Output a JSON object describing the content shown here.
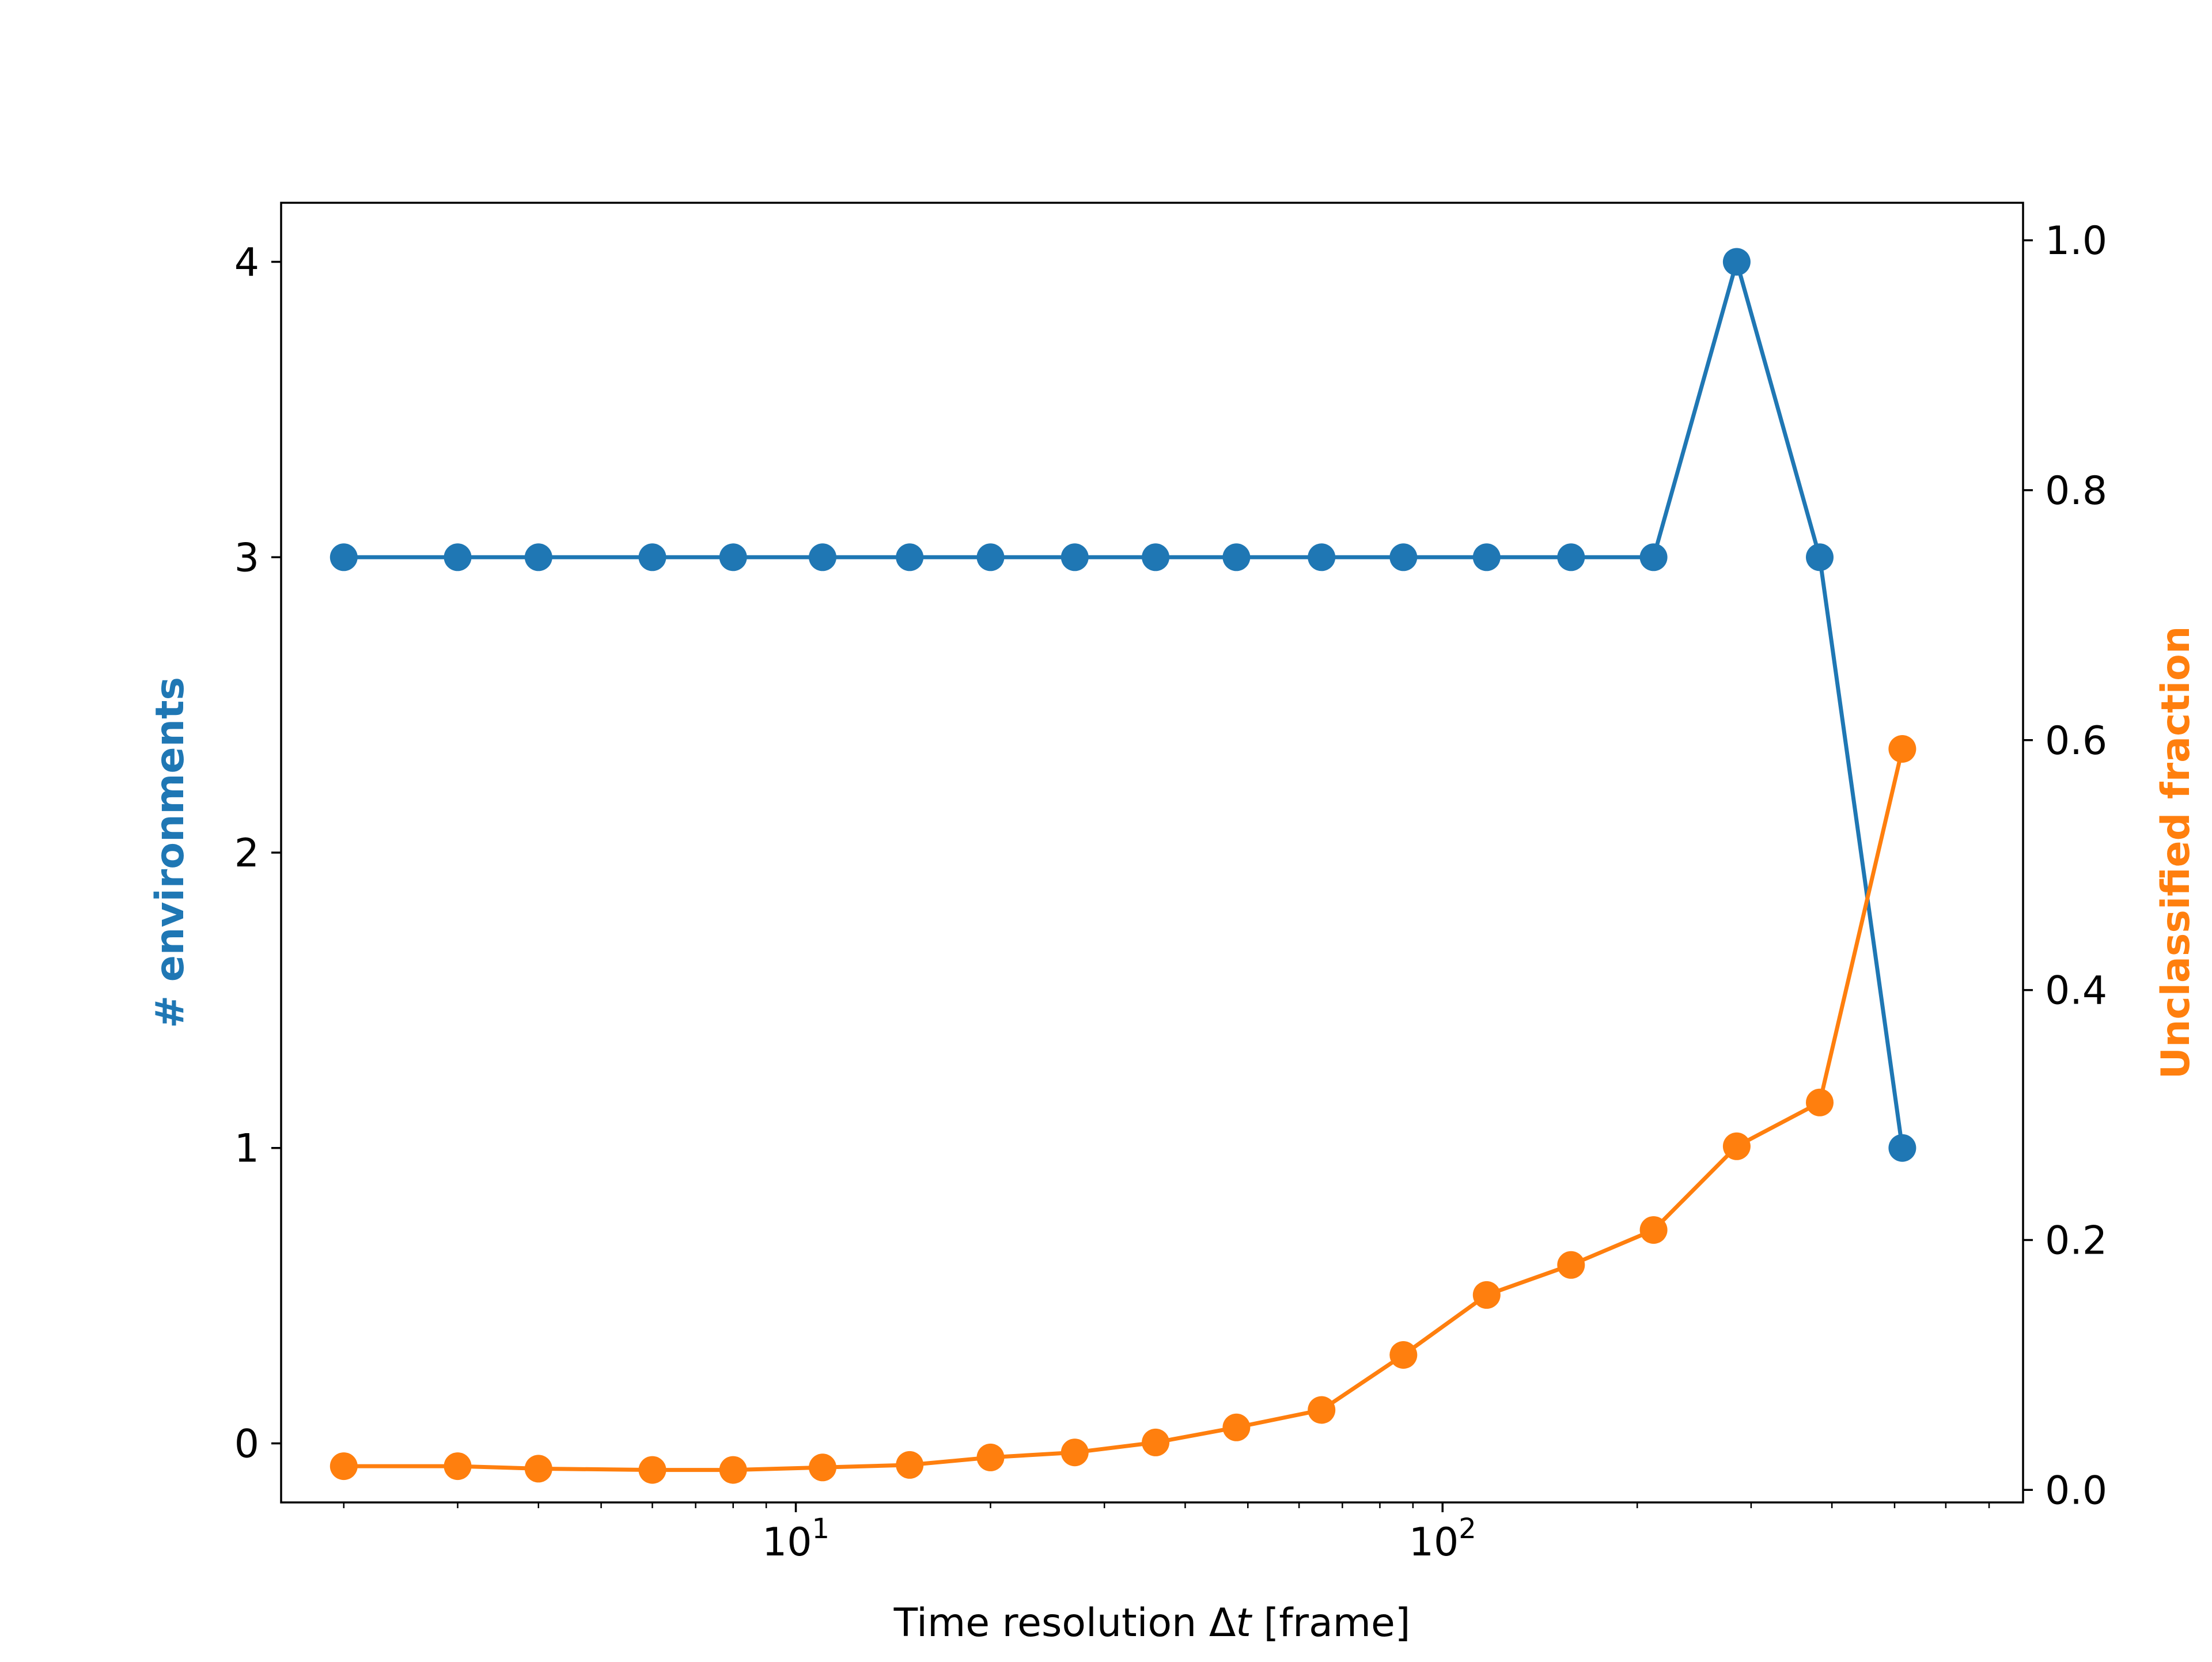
{
  "chart_data": {
    "type": "line",
    "title": "",
    "xlabel": "Time resolution Δt [frame]",
    "xlabel_parts": {
      "before": "Time resolution Δ",
      "italic": "t",
      "after": " [frame]"
    },
    "xscale": "log",
    "xlim": [
      1.6,
      790
    ],
    "x_major_ticks": [
      {
        "value": 10,
        "base": "10",
        "exp": "1"
      },
      {
        "value": 100,
        "base": "10",
        "exp": "2"
      }
    ],
    "x_minor_ticks": [
      2,
      3,
      4,
      5,
      6,
      7,
      8,
      9,
      20,
      30,
      40,
      50,
      60,
      70,
      80,
      90,
      200,
      300,
      400,
      500,
      600,
      700
    ],
    "x": [
      2,
      3,
      4,
      6,
      8,
      11,
      15,
      20,
      27,
      36,
      48,
      65,
      87,
      117,
      158,
      212,
      285,
      383,
      514
    ],
    "y_left": {
      "label": "# environments",
      "color": "#1f77b4",
      "ylim": [
        -0.2,
        4.2
      ],
      "ticks": [
        0,
        1,
        2,
        3,
        4
      ],
      "tick_labels": [
        "0",
        "1",
        "2",
        "3",
        "4"
      ]
    },
    "y_right": {
      "label": "Unclassified fraction",
      "color": "#ff7f0e",
      "ylim": [
        -0.01,
        1.03
      ],
      "ticks": [
        0.0,
        0.2,
        0.4,
        0.6,
        0.8,
        1.0
      ],
      "tick_labels": [
        "0.0",
        "0.2",
        "0.4",
        "0.6",
        "0.8",
        "1.0"
      ]
    },
    "series": [
      {
        "axis": "left",
        "color": "#1f77b4",
        "values": [
          3,
          3,
          3,
          3,
          3,
          3,
          3,
          3,
          3,
          3,
          3,
          3,
          3,
          3,
          3,
          3,
          4,
          3,
          1
        ]
      },
      {
        "axis": "right",
        "color": "#ff7f0e",
        "values": [
          0.019,
          0.019,
          0.017,
          0.016,
          0.016,
          0.018,
          0.02,
          0.026,
          0.03,
          0.038,
          0.05,
          0.064,
          0.108,
          0.156,
          0.18,
          0.208,
          0.275,
          0.31,
          0.593
        ]
      }
    ],
    "grid": false,
    "legend": "none"
  }
}
